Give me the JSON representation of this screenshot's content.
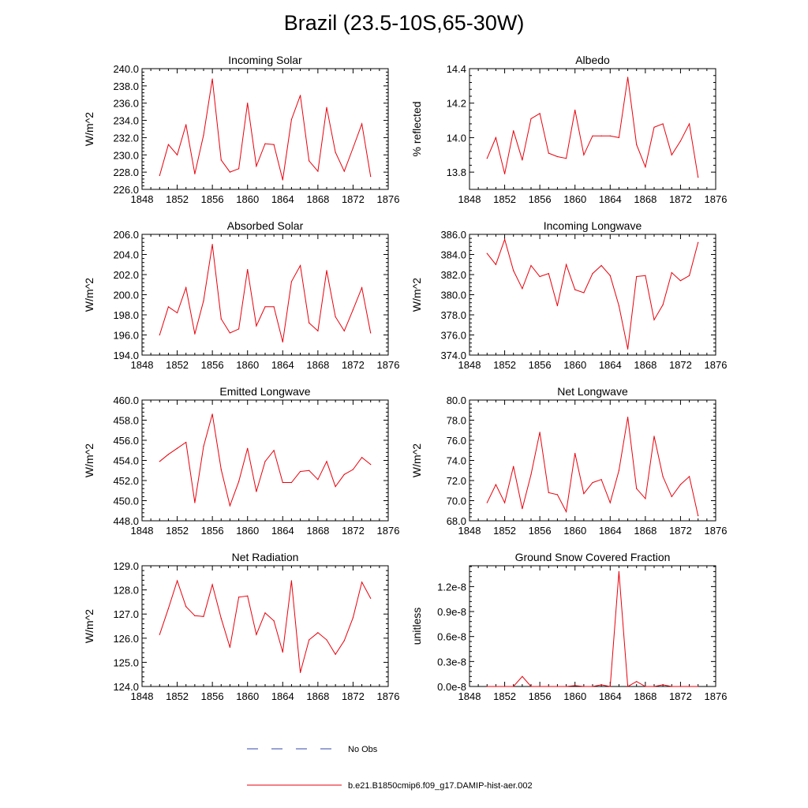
{
  "title": "Brazil (23.5-10S,65-30W)",
  "colors": {
    "model": "#e8000b",
    "obs": "#3344aa",
    "axis": "#000000"
  },
  "legend": [
    {
      "label": "No Obs",
      "style": "dashed",
      "color": "#3344aa"
    },
    {
      "label": "b.e21.B1850cmip6.f09_g17.DAMIP-hist-aer.002",
      "style": "solid",
      "color": "#e8000b"
    }
  ],
  "chart_data": [
    {
      "type": "line",
      "title": "Incoming Solar",
      "ylabel": "W/m^2",
      "xlim": [
        1848,
        1876
      ],
      "ylim": [
        226,
        240
      ],
      "xticks": [
        "1848",
        "1852",
        "1856",
        "1860",
        "1864",
        "1868",
        "1872",
        "1876"
      ],
      "yticks": [
        "226.0",
        "228.0",
        "230.0",
        "232.0",
        "234.0",
        "236.0",
        "238.0",
        "240.0"
      ],
      "x": [
        1850,
        1851,
        1852,
        1853,
        1854,
        1855,
        1856,
        1857,
        1858,
        1859,
        1860,
        1861,
        1862,
        1863,
        1864,
        1865,
        1866,
        1867,
        1868,
        1869,
        1870,
        1871,
        1872,
        1873,
        1874
      ],
      "series": [
        {
          "values": [
            227.6,
            231.2,
            230.0,
            233.5,
            227.8,
            232.3,
            238.8,
            229.4,
            228.0,
            228.4,
            236.0,
            228.7,
            231.3,
            231.2,
            227.1,
            234.1,
            236.9,
            229.3,
            228.1,
            235.5,
            230.3,
            228.1,
            230.8,
            233.6,
            227.5
          ]
        }
      ]
    },
    {
      "type": "line",
      "title": "Albedo",
      "ylabel": "% reflected",
      "xlim": [
        1848,
        1876
      ],
      "ylim": [
        13.7,
        14.4
      ],
      "xticks": [
        "1848",
        "1852",
        "1856",
        "1860",
        "1864",
        "1868",
        "1872",
        "1876"
      ],
      "yticks": [
        "13.8",
        "14.0",
        "14.2",
        "14.4"
      ],
      "x": [
        1850,
        1851,
        1852,
        1853,
        1854,
        1855,
        1856,
        1857,
        1858,
        1859,
        1860,
        1861,
        1862,
        1863,
        1864,
        1865,
        1866,
        1867,
        1868,
        1869,
        1870,
        1871,
        1872,
        1873,
        1874
      ],
      "series": [
        {
          "values": [
            13.88,
            14.0,
            13.79,
            14.04,
            13.87,
            14.11,
            14.14,
            13.91,
            13.89,
            13.88,
            14.16,
            13.9,
            14.01,
            14.01,
            14.01,
            14.0,
            14.35,
            13.96,
            13.83,
            14.06,
            14.08,
            13.9,
            13.98,
            14.08,
            13.77
          ]
        }
      ]
    },
    {
      "type": "line",
      "title": "Absorbed Solar",
      "ylabel": "W/m^2",
      "xlim": [
        1848,
        1876
      ],
      "ylim": [
        194,
        206
      ],
      "xticks": [
        "1848",
        "1852",
        "1856",
        "1860",
        "1864",
        "1868",
        "1872",
        "1876"
      ],
      "yticks": [
        "194.0",
        "196.0",
        "198.0",
        "200.0",
        "202.0",
        "204.0",
        "206.0"
      ],
      "x": [
        1850,
        1851,
        1852,
        1853,
        1854,
        1855,
        1856,
        1857,
        1858,
        1859,
        1860,
        1861,
        1862,
        1863,
        1864,
        1865,
        1866,
        1867,
        1868,
        1869,
        1870,
        1871,
        1872,
        1873,
        1874
      ],
      "series": [
        {
          "values": [
            196.0,
            198.8,
            198.2,
            200.7,
            196.1,
            199.4,
            205.0,
            197.6,
            196.2,
            196.6,
            202.5,
            196.9,
            198.8,
            198.8,
            195.3,
            201.3,
            202.9,
            197.2,
            196.4,
            202.4,
            197.8,
            196.4,
            198.5,
            200.7,
            196.2
          ]
        }
      ]
    },
    {
      "type": "line",
      "title": "Incoming Longwave",
      "ylabel": "W/m^2",
      "xlim": [
        1848,
        1876
      ],
      "ylim": [
        374,
        386
      ],
      "xticks": [
        "1848",
        "1852",
        "1856",
        "1860",
        "1864",
        "1868",
        "1872",
        "1876"
      ],
      "yticks": [
        "374.0",
        "376.0",
        "378.0",
        "380.0",
        "382.0",
        "384.0",
        "386.0"
      ],
      "x": [
        1850,
        1851,
        1852,
        1853,
        1854,
        1855,
        1856,
        1857,
        1858,
        1859,
        1860,
        1861,
        1862,
        1863,
        1864,
        1865,
        1866,
        1867,
        1868,
        1869,
        1870,
        1871,
        1872,
        1873,
        1874
      ],
      "series": [
        {
          "values": [
            384.1,
            383.0,
            385.5,
            382.4,
            380.6,
            382.9,
            381.8,
            382.1,
            378.9,
            383.0,
            380.5,
            380.2,
            382.1,
            382.9,
            381.9,
            378.9,
            374.6,
            381.8,
            381.9,
            377.5,
            379.0,
            382.2,
            381.4,
            381.9,
            385.2
          ]
        }
      ]
    },
    {
      "type": "line",
      "title": "Emitted Longwave",
      "ylabel": "W/m^2",
      "xlim": [
        1848,
        1876
      ],
      "ylim": [
        448,
        460
      ],
      "xticks": [
        "1848",
        "1852",
        "1856",
        "1860",
        "1864",
        "1868",
        "1872",
        "1876"
      ],
      "yticks": [
        "448.0",
        "450.0",
        "452.0",
        "454.0",
        "456.0",
        "458.0",
        "460.0"
      ],
      "x": [
        1850,
        1851,
        1852,
        1853,
        1854,
        1855,
        1856,
        1857,
        1858,
        1859,
        1860,
        1861,
        1862,
        1863,
        1864,
        1865,
        1866,
        1867,
        1868,
        1869,
        1870,
        1871,
        1872,
        1873,
        1874
      ],
      "series": [
        {
          "values": [
            453.9,
            454.6,
            455.2,
            455.8,
            449.8,
            455.4,
            458.6,
            453.1,
            449.5,
            451.9,
            455.2,
            450.9,
            453.9,
            455.0,
            451.8,
            451.8,
            452.9,
            453.0,
            452.1,
            453.9,
            451.4,
            452.6,
            453.1,
            454.3,
            453.6
          ]
        }
      ]
    },
    {
      "type": "line",
      "title": "Net Longwave",
      "ylabel": "W/m^2",
      "xlim": [
        1848,
        1876
      ],
      "ylim": [
        68,
        80
      ],
      "xticks": [
        "1848",
        "1852",
        "1856",
        "1860",
        "1864",
        "1868",
        "1872",
        "1876"
      ],
      "yticks": [
        "68.0",
        "70.0",
        "72.0",
        "74.0",
        "76.0",
        "78.0",
        "80.0"
      ],
      "x": [
        1850,
        1851,
        1852,
        1853,
        1854,
        1855,
        1856,
        1857,
        1858,
        1859,
        1860,
        1861,
        1862,
        1863,
        1864,
        1865,
        1866,
        1867,
        1868,
        1869,
        1870,
        1871,
        1872,
        1873,
        1874
      ],
      "series": [
        {
          "values": [
            69.8,
            71.6,
            69.8,
            73.4,
            69.2,
            72.6,
            76.8,
            70.8,
            70.6,
            68.9,
            74.7,
            70.7,
            71.8,
            72.1,
            69.8,
            73.0,
            78.3,
            71.2,
            70.2,
            76.4,
            72.4,
            70.4,
            71.6,
            72.4,
            68.5
          ]
        }
      ]
    },
    {
      "type": "line",
      "title": "Net Radiation",
      "ylabel": "W/m^2",
      "xlim": [
        1848,
        1876
      ],
      "ylim": [
        124,
        129
      ],
      "xticks": [
        "1848",
        "1852",
        "1856",
        "1860",
        "1864",
        "1868",
        "1872",
        "1876"
      ],
      "yticks": [
        "124.0",
        "125.0",
        "126.0",
        "127.0",
        "128.0",
        "129.0"
      ],
      "x": [
        1850,
        1851,
        1852,
        1853,
        1854,
        1855,
        1856,
        1857,
        1858,
        1859,
        1860,
        1861,
        1862,
        1863,
        1864,
        1865,
        1866,
        1867,
        1868,
        1869,
        1870,
        1871,
        1872,
        1873,
        1874
      ],
      "series": [
        {
          "values": [
            126.15,
            127.23,
            128.38,
            127.31,
            126.93,
            126.9,
            128.22,
            126.82,
            125.62,
            127.7,
            127.75,
            126.15,
            127.05,
            126.72,
            125.42,
            128.38,
            124.58,
            125.93,
            126.23,
            125.93,
            125.33,
            125.9,
            126.85,
            128.32,
            127.65
          ]
        }
      ]
    },
    {
      "type": "line",
      "title": "Ground Snow Covered Fraction",
      "ylabel": "unitless",
      "xlim": [
        1848,
        1876
      ],
      "ylim": [
        0,
        1.45e-08
      ],
      "xticks": [
        "1848",
        "1852",
        "1856",
        "1860",
        "1864",
        "1868",
        "1872",
        "1876"
      ],
      "ytick_values": [
        0,
        3e-09,
        6e-09,
        9e-09,
        1.2e-08
      ],
      "yticks": [
        "0.0e-8",
        "0.3e-8",
        "0.6e-8",
        "0.9e-8",
        "1.2e-8"
      ],
      "x": [
        1850,
        1851,
        1852,
        1853,
        1854,
        1855,
        1856,
        1857,
        1858,
        1859,
        1860,
        1861,
        1862,
        1863,
        1864,
        1865,
        1866,
        1867,
        1868,
        1869,
        1870,
        1871,
        1872,
        1873,
        1874
      ],
      "series": [
        {
          "values": [
            0,
            0,
            0,
            0,
            1.2e-09,
            0,
            0,
            0,
            0,
            0,
            1e-10,
            0,
            0,
            2e-10,
            0,
            1.38e-08,
            0,
            6e-10,
            0,
            0,
            2e-10,
            0,
            0,
            0,
            0
          ]
        }
      ]
    }
  ]
}
